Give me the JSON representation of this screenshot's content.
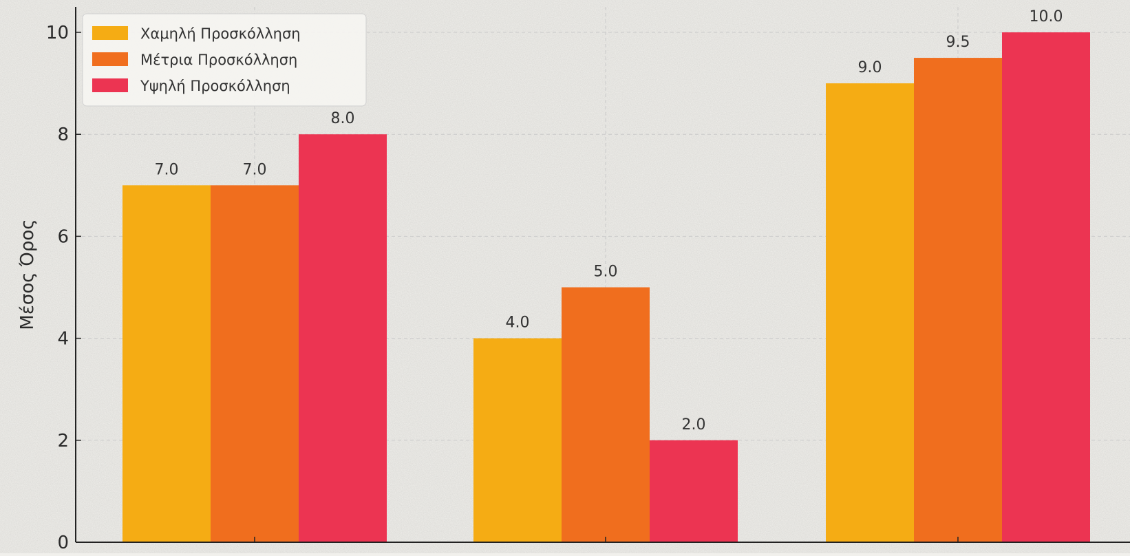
{
  "chart_data": {
    "type": "bar",
    "title": "",
    "xlabel": "",
    "ylabel": "Μέσος Όρος",
    "ylim": [
      0,
      10
    ],
    "yticks": [
      0,
      2,
      4,
      6,
      8,
      10
    ],
    "categories": [
      "",
      "",
      ""
    ],
    "grid": true,
    "legend_position": "top-left",
    "series": [
      {
        "name": "Χαμηλή Προσκόλληση",
        "color": "#f5ac14",
        "values": [
          7.0,
          4.0,
          9.0
        ]
      },
      {
        "name": "Μέτρια Προσκόλληση",
        "color": "#f06e1e",
        "values": [
          7.0,
          5.0,
          9.5
        ]
      },
      {
        "name": "Υψηλή Προσκόλληση",
        "color": "#ec3452",
        "values": [
          8.0,
          2.0,
          10.0
        ]
      }
    ]
  }
}
